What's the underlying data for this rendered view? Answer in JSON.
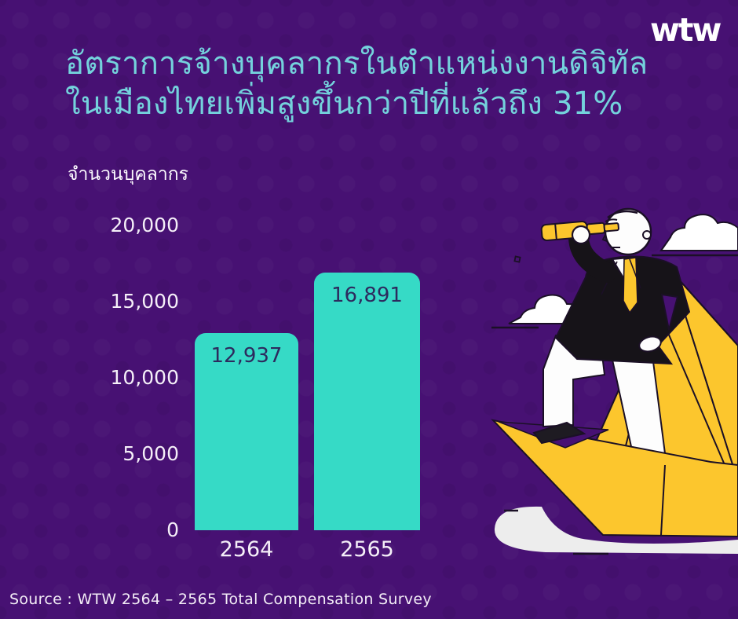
{
  "brand": {
    "logo": "wtw"
  },
  "title": {
    "line1": "อัตราการจ้างบุคลากรในตำแหน่งงานดิจิทัล",
    "line2": "ในเมืองไทยเพิ่มสูงขึ้นกว่าปีที่แล้วถึง 31%"
  },
  "chart_data": {
    "type": "bar",
    "title": "อัตราการจ้างบุคลากรในตำแหน่งงานดิจิทัลในเมืองไทยเพิ่มสูงขึ้นกว่าปีที่แล้วถึง 31%",
    "xlabel": "",
    "ylabel": "จำนวนบุคลากร",
    "categories": [
      "2564",
      "2565"
    ],
    "values": [
      12937,
      16891
    ],
    "value_labels": [
      "12,937",
      "16,891"
    ],
    "yticks": [
      0,
      5000,
      10000,
      15000,
      20000
    ],
    "ytick_labels": [
      "0",
      "5,000",
      "10,000",
      "15,000",
      "20,000"
    ],
    "ylim": [
      0,
      20000
    ],
    "grid": false,
    "legend": false,
    "bar_color": "#36dac6"
  },
  "footer": {
    "source": "Source : WTW 2564 – 2565 Total Compensation Survey"
  },
  "colors": {
    "background": "#471173",
    "title_text": "#74d2dc",
    "bar": "#36dac6",
    "bar_value_text": "#2d2a5e",
    "axis_text": "#f5eff8",
    "logo_text": "#ffffff",
    "illustration_yellow": "#fcc62d",
    "illustration_suit": "#161318",
    "illustration_wave": "#ededed"
  },
  "illustration": {
    "description": "man-in-suit-with-telescope-standing-on-yellow-paper-boat"
  }
}
